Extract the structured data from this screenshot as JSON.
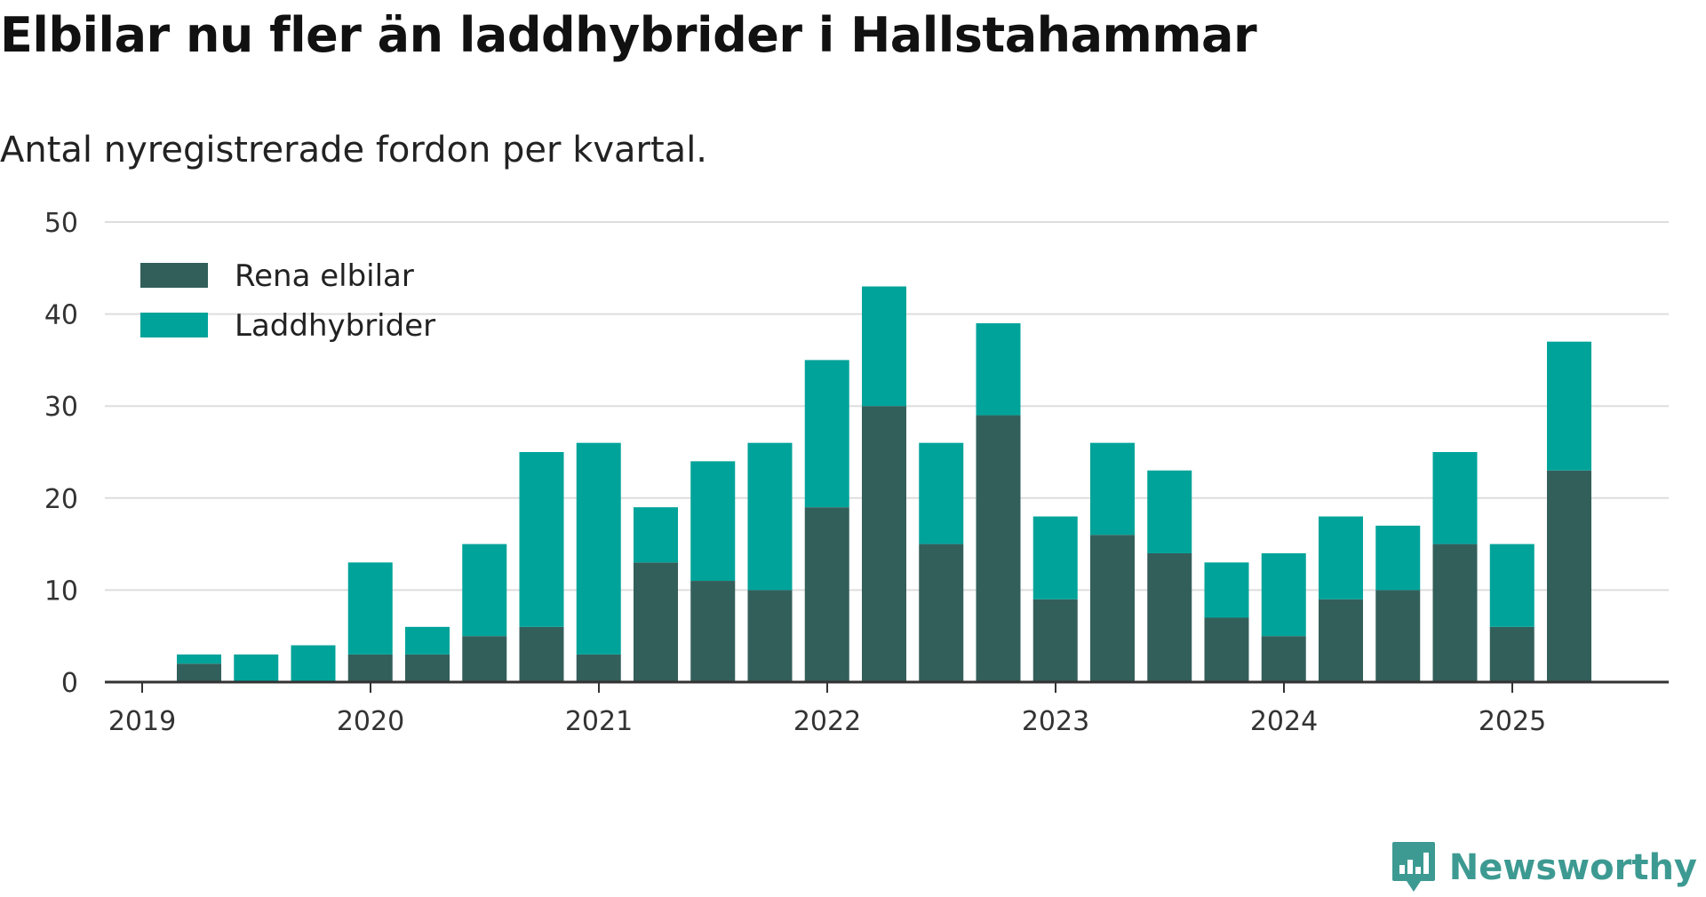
{
  "title": "Elbilar nu fler än laddhybrider i Hallstahammar",
  "subtitle": "Antal nyregistrerade fordon per kvartal.",
  "brand": {
    "name": "Newsworthy",
    "icon": "newsworthy-logo-icon",
    "color": "#3d9a92"
  },
  "chart_data": {
    "type": "bar",
    "stacked": true,
    "x": [
      "2019 Q2",
      "2019 Q3",
      "2019 Q4",
      "2020 Q1",
      "2020 Q2",
      "2020 Q3",
      "2020 Q4",
      "2021 Q1",
      "2021 Q2",
      "2021 Q3",
      "2021 Q4",
      "2022 Q1",
      "2022 Q2",
      "2022 Q3",
      "2022 Q4",
      "2023 Q1",
      "2023 Q2",
      "2023 Q3",
      "2023 Q4",
      "2024 Q1",
      "2024 Q2",
      "2024 Q3",
      "2024 Q4",
      "2025 Q1",
      "2025 Q2"
    ],
    "series": [
      {
        "name": "Rena elbilar",
        "color": "#335f5b",
        "values": [
          2,
          0,
          0,
          3,
          3,
          5,
          6,
          3,
          13,
          11,
          10,
          19,
          30,
          15,
          29,
          9,
          16,
          14,
          7,
          5,
          9,
          10,
          15,
          6,
          23
        ]
      },
      {
        "name": "Laddhybrider",
        "color": "#00a39a",
        "values": [
          1,
          3,
          4,
          10,
          3,
          10,
          19,
          23,
          6,
          13,
          16,
          16,
          13,
          11,
          10,
          9,
          10,
          9,
          6,
          9,
          9,
          7,
          10,
          9,
          14
        ]
      }
    ],
    "x_ticks": [
      "2019",
      "2020",
      "2021",
      "2022",
      "2023",
      "2024",
      "2025"
    ],
    "y_ticks": [
      0,
      10,
      20,
      30,
      40,
      50
    ],
    "ylim": [
      0,
      50
    ],
    "grid": true,
    "legend": "top-left"
  }
}
